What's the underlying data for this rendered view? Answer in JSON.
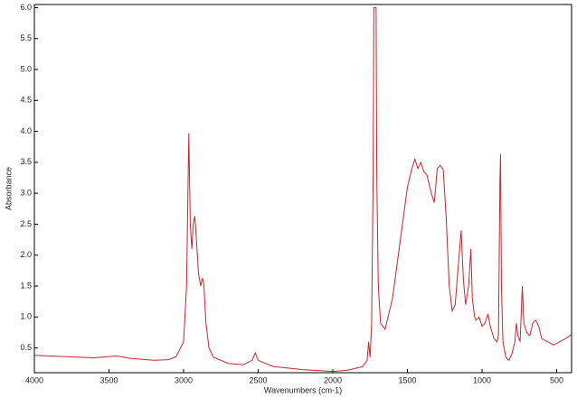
{
  "chart_data": {
    "type": "line",
    "x_label": "Wavenumbers (cm-1)",
    "y_label": "Absorbance",
    "xlim": [
      4000,
      400
    ],
    "ylim": [
      0.1,
      6.05
    ],
    "xticks": [
      4000,
      3500,
      3000,
      2500,
      2000,
      1500,
      1000,
      500
    ],
    "yticks": [
      0.5,
      {
        "value": 1,
        "label": "1.0"
      },
      1.5,
      {
        "value": 2,
        "label": "2.0"
      },
      2.5,
      {
        "value": 3,
        "label": "3.0"
      },
      3.5,
      {
        "value": 4,
        "label": "4.0"
      },
      4.5,
      {
        "value": 5,
        "label": "5.0"
      },
      5.5,
      {
        "value": 6,
        "label": "6.0"
      }
    ],
    "grid": false,
    "series": [
      {
        "color": "#c0282d",
        "x": [
          4000,
          3800,
          3600,
          3450,
          3350,
          3200,
          3100,
          3050,
          3000,
          2980,
          2965,
          2955,
          2945,
          2935,
          2925,
          2915,
          2900,
          2885,
          2875,
          2865,
          2850,
          2830,
          2800,
          2700,
          2600,
          2540,
          2520,
          2500,
          2400,
          2200,
          2000,
          1900,
          1800,
          1770,
          1760,
          1750,
          1740,
          1730,
          1725,
          1710,
          1705,
          1695,
          1680,
          1650,
          1600,
          1550,
          1500,
          1470,
          1450,
          1430,
          1410,
          1390,
          1370,
          1340,
          1320,
          1300,
          1280,
          1260,
          1240,
          1220,
          1200,
          1180,
          1160,
          1140,
          1125,
          1110,
          1090,
          1075,
          1065,
          1050,
          1040,
          1020,
          1000,
          980,
          960,
          945,
          920,
          900,
          890,
          880,
          876,
          870,
          860,
          840,
          820,
          800,
          780,
          770,
          760,
          745,
          730,
          720,
          700,
          680,
          660,
          640,
          620,
          600,
          560,
          520,
          480,
          440,
          400
        ],
        "values": [
          0.38,
          0.36,
          0.34,
          0.37,
          0.33,
          0.3,
          0.31,
          0.36,
          0.6,
          1.5,
          3.97,
          2.5,
          2.1,
          2.5,
          2.63,
          2.3,
          1.7,
          1.5,
          1.63,
          1.55,
          0.9,
          0.5,
          0.35,
          0.25,
          0.23,
          0.3,
          0.42,
          0.3,
          0.2,
          0.15,
          0.12,
          0.14,
          0.2,
          0.3,
          0.6,
          0.35,
          0.9,
          3.2,
          6.0,
          6.0,
          3.2,
          1.5,
          0.9,
          0.8,
          1.3,
          2.2,
          3.1,
          3.4,
          3.55,
          3.4,
          3.5,
          3.35,
          3.3,
          3.0,
          2.85,
          3.4,
          3.45,
          3.38,
          2.6,
          1.5,
          1.1,
          1.2,
          1.8,
          2.4,
          1.6,
          1.2,
          1.5,
          2.1,
          1.3,
          1.0,
          0.95,
          1.0,
          0.85,
          0.9,
          1.05,
          0.85,
          0.65,
          0.6,
          0.7,
          3.2,
          3.63,
          1.5,
          0.6,
          0.35,
          0.3,
          0.4,
          0.6,
          0.9,
          0.7,
          0.6,
          1.5,
          0.9,
          0.75,
          0.7,
          0.9,
          0.95,
          0.85,
          0.65,
          0.6,
          0.55,
          0.6,
          0.65,
          0.72
        ]
      }
    ]
  }
}
